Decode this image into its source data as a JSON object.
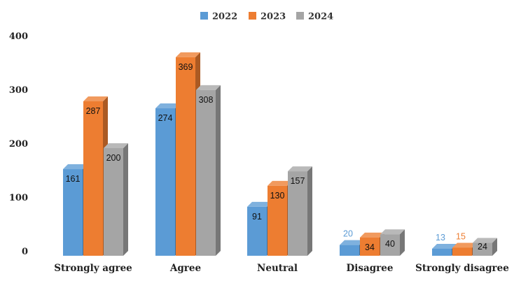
{
  "chart_data": {
    "type": "bar",
    "title": "",
    "xlabel": "",
    "ylabel": "",
    "categories": [
      "Strongly agree",
      "Agree",
      "Neutral",
      "Disagree",
      "Strongly disagree"
    ],
    "series": [
      {
        "name": "2022",
        "values": [
          161,
          274,
          91,
          20,
          13
        ],
        "color": "#5b9bd5"
      },
      {
        "name": "2023",
        "values": [
          287,
          369,
          130,
          34,
          15
        ],
        "color": "#ed7d31"
      },
      {
        "name": "2024",
        "values": [
          200,
          308,
          157,
          40,
          24
        ],
        "color": "#a5a5a5"
      }
    ],
    "ylim": [
      0,
      400
    ],
    "yticks": [
      "0",
      "100",
      "200",
      "300",
      "400"
    ],
    "grid": false,
    "legend_position": "top",
    "style": "3d-column"
  }
}
